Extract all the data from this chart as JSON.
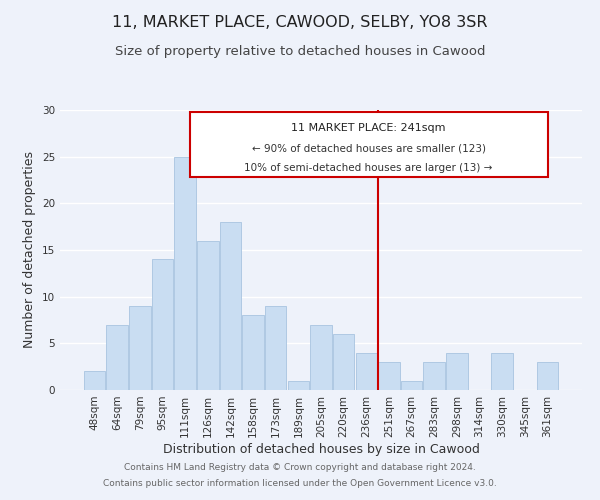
{
  "title": "11, MARKET PLACE, CAWOOD, SELBY, YO8 3SR",
  "subtitle": "Size of property relative to detached houses in Cawood",
  "xlabel": "Distribution of detached houses by size in Cawood",
  "ylabel": "Number of detached properties",
  "footer_line1": "Contains HM Land Registry data © Crown copyright and database right 2024.",
  "footer_line2": "Contains public sector information licensed under the Open Government Licence v3.0.",
  "categories": [
    "48sqm",
    "64sqm",
    "79sqm",
    "95sqm",
    "111sqm",
    "126sqm",
    "142sqm",
    "158sqm",
    "173sqm",
    "189sqm",
    "205sqm",
    "220sqm",
    "236sqm",
    "251sqm",
    "267sqm",
    "283sqm",
    "298sqm",
    "314sqm",
    "330sqm",
    "345sqm",
    "361sqm"
  ],
  "values": [
    2,
    7,
    9,
    14,
    25,
    16,
    18,
    8,
    9,
    1,
    7,
    6,
    4,
    3,
    1,
    3,
    4,
    0,
    4,
    0,
    3
  ],
  "bar_color": "#c9ddf2",
  "bar_edge_color": "#a8c4e0",
  "marker_label": "11 MARKET PLACE: 241sqm",
  "annotation_line1": "← 90% of detached houses are smaller (123)",
  "annotation_line2": "10% of semi-detached houses are larger (13) →",
  "annotation_box_color": "#ffffff",
  "annotation_box_edge": "#cc0000",
  "marker_line_color": "#cc0000",
  "ylim": [
    0,
    30
  ],
  "yticks": [
    0,
    5,
    10,
    15,
    20,
    25,
    30
  ],
  "background_color": "#eef2fa",
  "grid_color": "#ffffff",
  "title_fontsize": 11.5,
  "subtitle_fontsize": 9.5,
  "axis_label_fontsize": 9,
  "tick_fontsize": 7.5,
  "footer_fontsize": 6.5
}
